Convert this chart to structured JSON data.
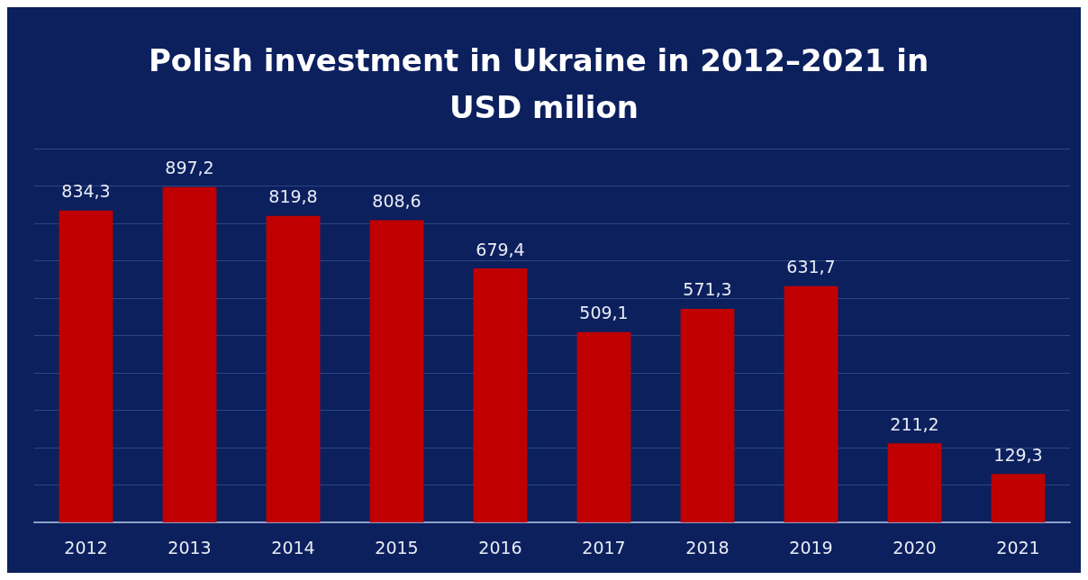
{
  "chart_data": {
    "type": "bar",
    "title": "Polish investment in Ukraine in 2012–2021 in USD milion",
    "categories": [
      "2012",
      "2013",
      "2014",
      "2015",
      "2016",
      "2017",
      "2018",
      "2019",
      "2020",
      "2021"
    ],
    "values": [
      834.3,
      897.2,
      819.8,
      808.6,
      679.4,
      509.1,
      571.3,
      631.7,
      211.2,
      129.3
    ],
    "value_labels": [
      "834,3",
      "897,2",
      "819,8",
      "808,6",
      "679,4",
      "509,1",
      "571,3",
      "631,7",
      "211,2",
      "129,3"
    ],
    "color": "#c00000",
    "ylim": [
      0,
      1000
    ],
    "yticks": [
      {
        "value": 0,
        "label": null
      },
      {
        "value": 100,
        "label": null
      },
      {
        "value": 200,
        "label": null
      },
      {
        "value": 300,
        "label": null
      },
      {
        "value": 400,
        "label": null
      },
      {
        "value": 500,
        "label": null
      },
      {
        "value": 600,
        "label": null
      },
      {
        "value": 700,
        "label": null
      },
      {
        "value": 800,
        "label": null
      },
      {
        "value": 900,
        "label": null
      },
      {
        "value": 1000,
        "label": null
      }
    ],
    "grid": "y",
    "tick_labels": "x"
  }
}
